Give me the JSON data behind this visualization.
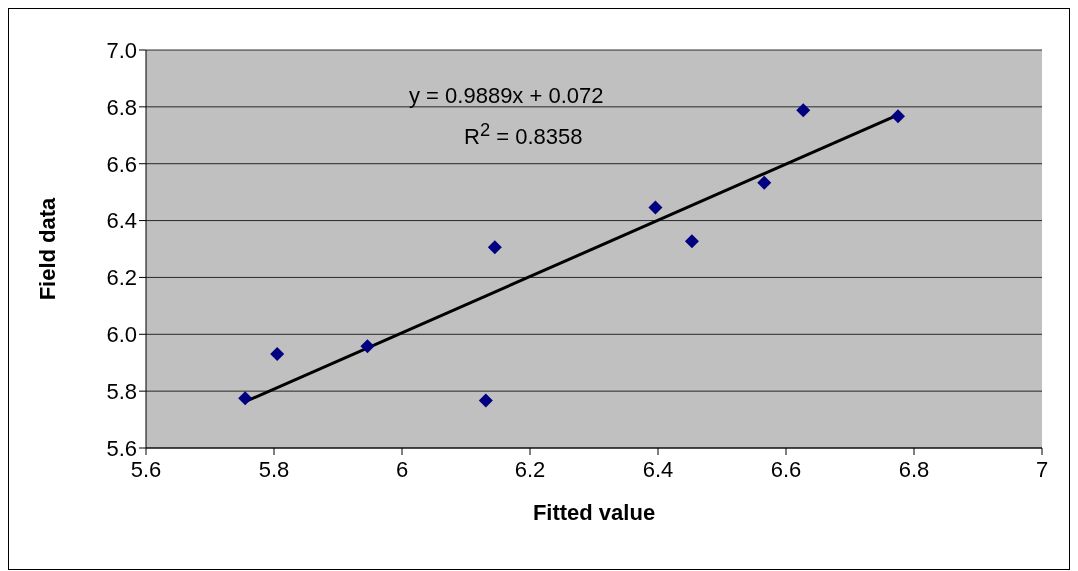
{
  "chart_data": {
    "type": "scatter",
    "xlabel": "Fitted value",
    "ylabel": "Field data",
    "marker": "diamond",
    "grid": "y",
    "xlim": [
      5.6,
      7
    ],
    "xticks": [
      5.6,
      5.8,
      6,
      6.2,
      6.4,
      6.6,
      6.8,
      7
    ],
    "ylim": [
      5.6,
      7.0
    ],
    "yticks": [
      {
        "value": 5.6,
        "label": "5.6"
      },
      {
        "value": 5.8,
        "label": "5.8"
      },
      {
        "value": 6,
        "label": "6.0"
      },
      {
        "value": 6.2,
        "label": "6.2"
      },
      {
        "value": 6.4,
        "label": "6.4"
      },
      {
        "value": 6.6,
        "label": "6.6"
      },
      {
        "value": 6.8,
        "label": "6.8"
      },
      {
        "value": 7,
        "label": "7.0"
      }
    ],
    "annotations": [
      "y = 0.9889x + 0.072",
      "R$^{2}$ = 0.8358"
    ],
    "series": [
      {
        "color": "#000080",
        "x": [
          5.755,
          5.805,
          5.946,
          6.131,
          6.145,
          6.396,
          6.453,
          6.566,
          6.627,
          6.775
        ],
        "values": [
          5.775,
          5.931,
          5.958,
          5.767,
          6.306,
          6.446,
          6.327,
          6.533,
          6.788,
          6.767
        ]
      },
      {
        "type": "line",
        "color": "#000000",
        "marker": "none",
        "x": [
          5.755,
          6.775
        ],
        "values": [
          5.763,
          6.772
        ]
      }
    ]
  }
}
